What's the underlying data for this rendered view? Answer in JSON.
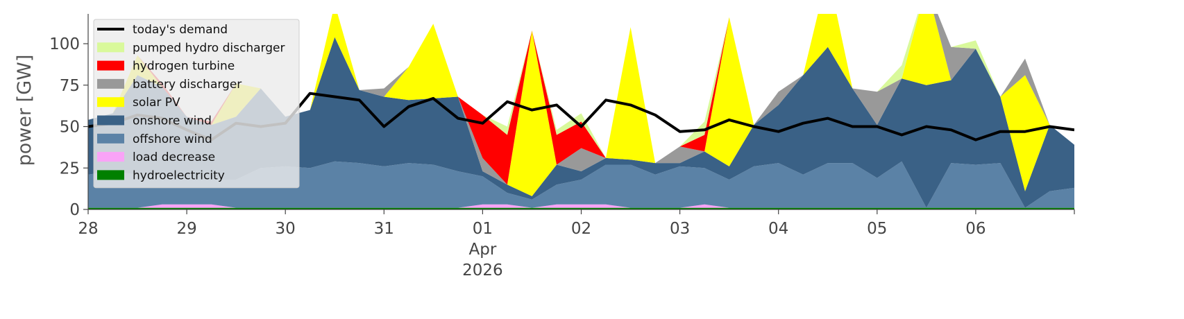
{
  "chart_data": {
    "type": "area",
    "title": "",
    "xlabel": "",
    "ylabel": "power [GW]",
    "ylim": [
      0,
      118
    ],
    "yticks": [
      0,
      25,
      50,
      75,
      100
    ],
    "xlim": [
      "2026-03-28T00:00",
      "2026-04-07T00:00"
    ],
    "xticks": [
      {
        "date": "2026-03-28",
        "label": "28",
        "sub": []
      },
      {
        "date": "2026-03-29",
        "label": "29",
        "sub": []
      },
      {
        "date": "2026-03-30",
        "label": "30",
        "sub": []
      },
      {
        "date": "2026-03-31",
        "label": "31",
        "sub": []
      },
      {
        "date": "2026-04-01",
        "label": "01",
        "sub": [
          "Apr",
          "2026"
        ]
      },
      {
        "date": "2026-04-02",
        "label": "02",
        "sub": []
      },
      {
        "date": "2026-04-03",
        "label": "03",
        "sub": []
      },
      {
        "date": "2026-04-04",
        "label": "04",
        "sub": []
      },
      {
        "date": "2026-04-05",
        "label": "05",
        "sub": []
      },
      {
        "date": "2026-04-06",
        "label": "06",
        "sub": []
      }
    ],
    "grid": false,
    "legend_position": "top-left",
    "x": [
      "2026-03-28T00:00",
      "2026-03-28T06:00",
      "2026-03-28T12:00",
      "2026-03-28T18:00",
      "2026-03-29T00:00",
      "2026-03-29T06:00",
      "2026-03-29T12:00",
      "2026-03-29T18:00",
      "2026-03-30T00:00",
      "2026-03-30T06:00",
      "2026-03-30T12:00",
      "2026-03-30T18:00",
      "2026-03-31T00:00",
      "2026-03-31T06:00",
      "2026-03-31T12:00",
      "2026-03-31T18:00",
      "2026-04-01T00:00",
      "2026-04-01T06:00",
      "2026-04-01T12:00",
      "2026-04-01T18:00",
      "2026-04-02T00:00",
      "2026-04-02T06:00",
      "2026-04-02T12:00",
      "2026-04-02T18:00",
      "2026-04-03T00:00",
      "2026-04-03T06:00",
      "2026-04-03T12:00",
      "2026-04-03T18:00",
      "2026-04-04T00:00",
      "2026-04-04T06:00",
      "2026-04-04T12:00",
      "2026-04-04T18:00",
      "2026-04-05T00:00",
      "2026-04-05T06:00",
      "2026-04-05T12:00",
      "2026-04-05T18:00",
      "2026-04-06T00:00",
      "2026-04-06T06:00",
      "2026-04-06T12:00",
      "2026-04-06T18:00",
      "2026-04-07T00:00"
    ],
    "series": [
      {
        "name": "hydroelectricity",
        "color": "#008000",
        "values": [
          1,
          1,
          1,
          1,
          1,
          1,
          1,
          1,
          1,
          1,
          1,
          1,
          1,
          1,
          1,
          1,
          1,
          1,
          1,
          1,
          1,
          1,
          1,
          1,
          1,
          1,
          1,
          1,
          1,
          1,
          1,
          1,
          1,
          1,
          1,
          1,
          1,
          1,
          1,
          1,
          1
        ]
      },
      {
        "name": "load decrease",
        "color": "#f9a3f7",
        "values": [
          0,
          0,
          0,
          2,
          2,
          2,
          0,
          0,
          0,
          0,
          0,
          0,
          0,
          0,
          0,
          0,
          2,
          2,
          0,
          2,
          2,
          2,
          0,
          0,
          0,
          2,
          0,
          0,
          0,
          0,
          0,
          0,
          0,
          0,
          0,
          0,
          0,
          0,
          0,
          0,
          0
        ]
      },
      {
        "name": "offshore wind",
        "color": "#5b82a6",
        "values": [
          20,
          22,
          20,
          18,
          15,
          15,
          17,
          24,
          25,
          24,
          28,
          27,
          25,
          27,
          26,
          22,
          17,
          7,
          5,
          12,
          15,
          24,
          26,
          20,
          25,
          22,
          17,
          25,
          27,
          20,
          27,
          27,
          18,
          28,
          0,
          27,
          26,
          27,
          0,
          10,
          12
        ]
      },
      {
        "name": "onshore wind",
        "color": "#3a6186",
        "values": [
          33,
          35,
          60,
          53,
          38,
          33,
          38,
          48,
          30,
          35,
          75,
          44,
          42,
          38,
          40,
          45,
          3,
          5,
          2,
          12,
          5,
          4,
          3,
          7,
          2,
          10,
          8,
          25,
          35,
          60,
          70,
          45,
          32,
          50,
          74,
          50,
          70,
          40,
          10,
          40,
          26
        ]
      },
      {
        "name": "solar PV",
        "color": "#ffff00",
        "values": [
          0,
          0,
          12,
          0,
          0,
          0,
          20,
          0,
          0,
          0,
          20,
          0,
          0,
          20,
          45,
          0,
          0,
          0,
          100,
          0,
          0,
          0,
          80,
          0,
          0,
          0,
          90,
          0,
          0,
          0,
          45,
          0,
          0,
          0,
          60,
          0,
          0,
          0,
          70,
          0,
          0
        ]
      },
      {
        "name": "battery discharger",
        "color": "#999999",
        "values": [
          0,
          0,
          0,
          0,
          0,
          0,
          0,
          0,
          0,
          0,
          0,
          0,
          5,
          0,
          0,
          0,
          8,
          0,
          0,
          0,
          14,
          0,
          0,
          0,
          10,
          0,
          0,
          0,
          8,
          0,
          0,
          0,
          20,
          0,
          0,
          20,
          0,
          0,
          10,
          0,
          0
        ]
      },
      {
        "name": "hydrogen turbine",
        "color": "#ff0000",
        "values": [
          0,
          0,
          0,
          2,
          0,
          2,
          0,
          0,
          0,
          0,
          0,
          0,
          0,
          0,
          0,
          0,
          26,
          30,
          0,
          18,
          16,
          0,
          0,
          0,
          0,
          10,
          0,
          0,
          0,
          0,
          0,
          0,
          0,
          0,
          0,
          0,
          0,
          0,
          0,
          0,
          0
        ]
      },
      {
        "name": "pumped hydro discharger",
        "color": "#d9f99b",
        "values": [
          0,
          0,
          0,
          0,
          0,
          0,
          0,
          0,
          0,
          0,
          0,
          0,
          0,
          0,
          0,
          0,
          0,
          5,
          0,
          3,
          5,
          0,
          0,
          0,
          0,
          8,
          0,
          0,
          0,
          0,
          0,
          0,
          0,
          8,
          0,
          0,
          5,
          0,
          0,
          0,
          0
        ]
      }
    ],
    "demand": {
      "name": "today's demand",
      "color": "#000000",
      "values": [
        50,
        52,
        57,
        55,
        48,
        42,
        52,
        50,
        52,
        70,
        68,
        66,
        50,
        62,
        67,
        55,
        52,
        65,
        60,
        63,
        50,
        66,
        63,
        57,
        47,
        48,
        54,
        50,
        47,
        52,
        55,
        50,
        50,
        45,
        50,
        48,
        42,
        47,
        47,
        50,
        48
      ]
    }
  }
}
